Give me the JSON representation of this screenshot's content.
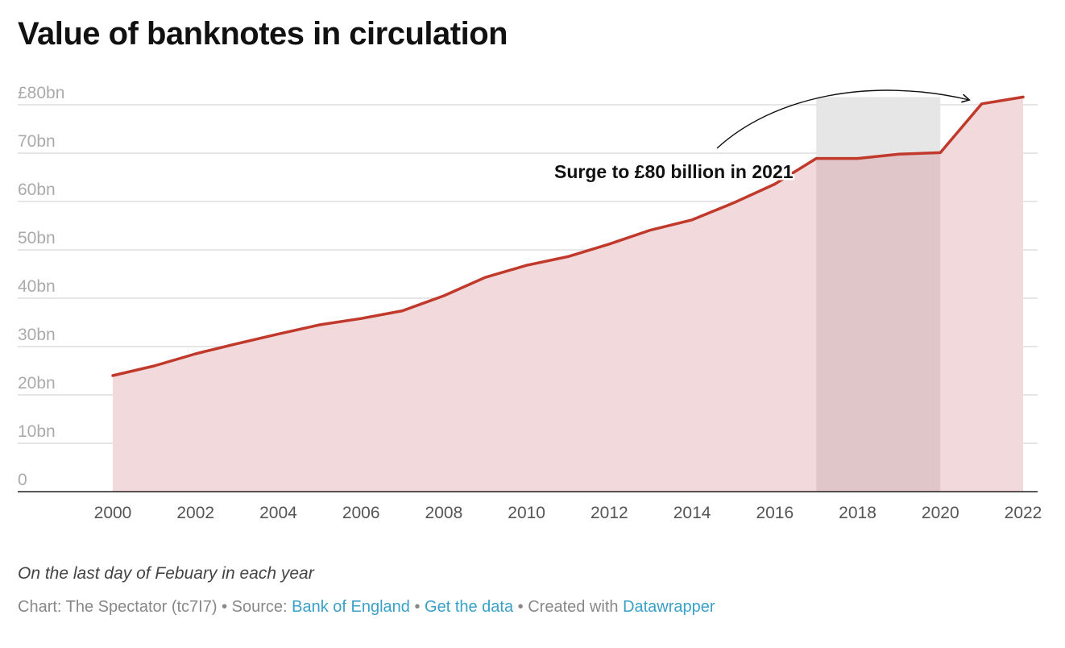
{
  "title": "Value of banknotes in circulation",
  "note": "On the last day of Febuary in each year",
  "footer": {
    "credit": "Chart: The Spectator (tc7I7) • Source: ",
    "source_link": "Bank of England",
    "sep1": " • ",
    "data_link": "Get the data",
    "sep2": " • Created with ",
    "tool_link": "Datawrapper"
  },
  "colors": {
    "line": "#c0392b",
    "area": "#f2d9db",
    "highlight_band": "#e6e6e6",
    "highlight_overlap": "#e0c6c8",
    "grid": "#dddddd",
    "axis": "#222222",
    "tick_text": "#aaaaaa",
    "x_tick_text": "#555555"
  },
  "chart_data": {
    "type": "area",
    "title": "Value of banknotes in circulation",
    "xlabel": "",
    "ylabel": "",
    "x": [
      2000,
      2001,
      2002,
      2003,
      2004,
      2005,
      2006,
      2007,
      2008,
      2009,
      2010,
      2011,
      2012,
      2013,
      2014,
      2015,
      2016,
      2017,
      2018,
      2019,
      2020,
      2021,
      2022
    ],
    "values": [
      24.0,
      26.0,
      28.5,
      30.6,
      32.6,
      34.5,
      35.8,
      37.4,
      40.5,
      44.3,
      46.8,
      48.6,
      51.2,
      54.1,
      56.2,
      59.7,
      63.6,
      68.9,
      68.9,
      69.8,
      70.1,
      80.2,
      81.6
    ],
    "xlim": [
      1999.5,
      2022.35
    ],
    "ylim": [
      0,
      80
    ],
    "y_ticks": [
      0,
      10,
      20,
      30,
      40,
      50,
      60,
      70,
      80
    ],
    "y_tick_labels": [
      "0",
      "10bn",
      "20bn",
      "30bn",
      "40bn",
      "50bn",
      "60bn",
      "70bn",
      "£80bn"
    ],
    "x_ticks": [
      2000,
      2002,
      2004,
      2006,
      2008,
      2010,
      2012,
      2014,
      2016,
      2018,
      2020,
      2022
    ],
    "x_tick_labels": [
      "2000",
      "2002",
      "2004",
      "2006",
      "2008",
      "2010",
      "2012",
      "2014",
      "2016",
      "2018",
      "2020",
      "2022"
    ],
    "highlight_range": [
      2017,
      2020
    ],
    "annotation": {
      "text": "Surge to £80 billion in 2021",
      "anchor_x": 2017,
      "anchor_y": 64,
      "arrow_to_x": 2020.7,
      "arrow_to_y": 81
    },
    "grid": true
  }
}
